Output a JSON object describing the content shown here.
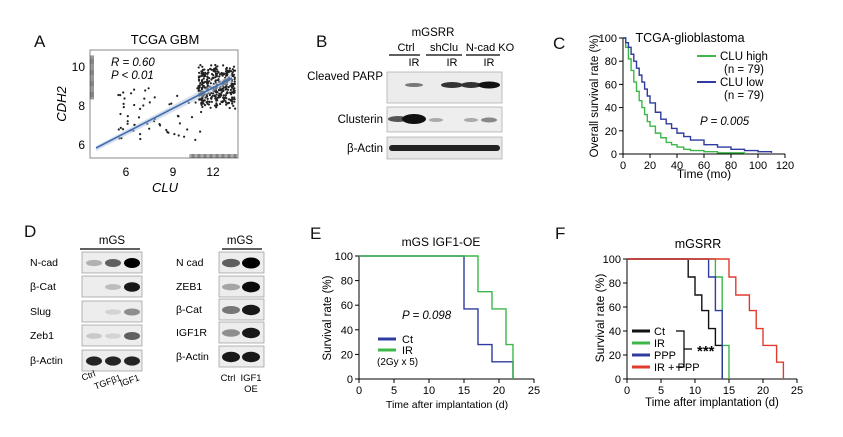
{
  "panel_letters": [
    "A",
    "B",
    "C",
    "D",
    "E",
    "F"
  ],
  "panelA": {
    "title": "TCGA GBM",
    "r_text": "R = 0.60",
    "p_text": "P < 0.01",
    "xlabel": "CLU",
    "ylabel": "CDH2",
    "xticks": [
      "6",
      "9",
      "12"
    ],
    "yticks": [
      "6",
      "8",
      "10"
    ]
  },
  "panelB": {
    "header": "mGSRR",
    "groups": [
      "Ctrl",
      "shClu",
      "N-cad KO"
    ],
    "ir_labels": [
      "IR",
      "IR",
      "IR"
    ],
    "rows": [
      "Cleaved PARP",
      "Clusterin",
      "β-Actin"
    ]
  },
  "panelC": {
    "title": "TCGA-glioblastoma",
    "legend": [
      {
        "label": "CLU high",
        "n": "(n = 79)",
        "color": "#3cb84a"
      },
      {
        "label": "CLU low",
        "n": "(n = 79)",
        "color": "#2f3b9e"
      }
    ],
    "p_text": "P = 0.005",
    "xlabel": "Time (mo)",
    "ylabel": "Overall survival rate (%)",
    "xticks": [
      "0",
      "20",
      "40",
      "60",
      "80",
      "100",
      "120"
    ],
    "yticks": [
      "0",
      "20",
      "40",
      "60",
      "80",
      "100"
    ]
  },
  "panelD": {
    "left_header": "mGS",
    "left_rows": [
      "N-cad",
      "β-Cat",
      "Slug",
      "Zeb1",
      "β-Actin"
    ],
    "left_lanes": [
      "Ctrl",
      "TGFβ1",
      "IGF1"
    ],
    "right_header": "mGS",
    "right_rows": [
      "N cad",
      "ZEB1",
      "β-Cat",
      "IGF1R",
      "β-Actin"
    ],
    "right_lanes": [
      "Ctrl",
      "IGF1 OE"
    ]
  },
  "panelE": {
    "title": "mGS IGF1-OE",
    "p_text": "P = 0.098",
    "legend": [
      {
        "label": "Ct",
        "color": "#2f3b9e"
      },
      {
        "label": "IR",
        "color": "#3cb84a"
      }
    ],
    "legend_note": "(2Gy x 5)",
    "xlabel": "Time after implantation (d)",
    "ylabel": "Survival rate (%)",
    "xticks": [
      "0",
      "5",
      "10",
      "15",
      "20",
      "25"
    ],
    "yticks": [
      "0",
      "20",
      "40",
      "60",
      "80",
      "100"
    ]
  },
  "panelF": {
    "title": "mGSRR",
    "legend": [
      {
        "label": "Ct",
        "color": "#111111"
      },
      {
        "label": "IR",
        "color": "#3cb84a"
      },
      {
        "label": "PPP",
        "color": "#2f3b9e"
      },
      {
        "label": "IR + PPP",
        "color": "#e23b2e"
      }
    ],
    "sig": "***",
    "xlabel": "Time after implantation (d)",
    "ylabel": "Survival rate (%)",
    "xticks": [
      "0",
      "5",
      "10",
      "15",
      "20",
      "25"
    ],
    "yticks": [
      "0",
      "20",
      "40",
      "60",
      "80",
      "100"
    ]
  },
  "chart_data": [
    {
      "type": "scatter",
      "panel": "A",
      "title": "TCGA GBM",
      "xlabel": "CLU",
      "ylabel": "CDH2",
      "xlim": [
        3.5,
        14
      ],
      "ylim": [
        4.8,
        10.8
      ],
      "annotations": [
        "R = 0.60",
        "P < 0.01"
      ],
      "regression": {
        "x": [
          4,
          13.5
        ],
        "y": [
          6.1,
          9.6
        ]
      }
    },
    {
      "type": "line",
      "panel": "C",
      "title": "TCGA-glioblastoma",
      "xlabel": "Time (mo)",
      "ylabel": "Overall survival rate (%)",
      "xlim": [
        0,
        120
      ],
      "ylim": [
        0,
        100
      ],
      "series": [
        {
          "name": "CLU high",
          "x": [
            0,
            2,
            4,
            6,
            8,
            10,
            12,
            14,
            16,
            18,
            20,
            24,
            28,
            32,
            36,
            40,
            45,
            50,
            60,
            70,
            80,
            90
          ],
          "y": [
            100,
            92,
            82,
            72,
            62,
            54,
            46,
            40,
            34,
            28,
            24,
            18,
            14,
            10,
            8,
            6,
            4,
            3,
            2,
            1,
            1,
            0
          ]
        },
        {
          "name": "CLU low",
          "x": [
            0,
            2,
            4,
            6,
            8,
            10,
            12,
            14,
            16,
            18,
            20,
            24,
            28,
            32,
            36,
            40,
            45,
            50,
            60,
            70,
            80,
            90,
            100,
            110
          ],
          "y": [
            100,
            96,
            92,
            86,
            80,
            74,
            68,
            62,
            56,
            50,
            44,
            36,
            30,
            26,
            22,
            18,
            15,
            12,
            8,
            6,
            4,
            3,
            2,
            1
          ]
        }
      ],
      "annotations": [
        "P = 0.005"
      ]
    },
    {
      "type": "line",
      "panel": "E",
      "title": "mGS IGF1-OE",
      "xlabel": "Time after implantation (d)",
      "ylabel": "Survival rate (%)",
      "xlim": [
        0,
        25
      ],
      "ylim": [
        0,
        100
      ],
      "series": [
        {
          "name": "Ct",
          "x": [
            0,
            15,
            15,
            17,
            17,
            19,
            19,
            22,
            22
          ],
          "y": [
            100,
            100,
            57,
            57,
            28,
            28,
            14,
            14,
            0
          ]
        },
        {
          "name": "IR",
          "x": [
            0,
            17,
            17,
            19,
            19,
            21,
            21,
            22,
            22
          ],
          "y": [
            100,
            100,
            71,
            71,
            57,
            57,
            28,
            28,
            0
          ]
        }
      ],
      "annotations": [
        "P = 0.098"
      ]
    },
    {
      "type": "line",
      "panel": "F",
      "title": "mGSRR",
      "xlabel": "Time after implantation (d)",
      "ylabel": "Survival rate (%)",
      "xlim": [
        0,
        25
      ],
      "ylim": [
        0,
        100
      ],
      "series": [
        {
          "name": "Ct",
          "x": [
            0,
            9,
            9,
            10,
            10,
            11,
            11,
            12,
            12,
            13,
            13,
            14,
            14
          ],
          "y": [
            100,
            100,
            85,
            85,
            70,
            70,
            57,
            57,
            42,
            42,
            28,
            28,
            0
          ]
        },
        {
          "name": "IR",
          "x": [
            0,
            13,
            13,
            14,
            14,
            15,
            15
          ],
          "y": [
            100,
            100,
            85,
            85,
            28,
            28,
            0
          ]
        },
        {
          "name": "PPP",
          "x": [
            0,
            12,
            12,
            13,
            13,
            14,
            14
          ],
          "y": [
            100,
            100,
            85,
            85,
            57,
            57,
            0
          ]
        },
        {
          "name": "IR + PPP",
          "x": [
            0,
            15,
            15,
            16,
            16,
            18,
            18,
            19,
            19,
            20,
            20,
            22,
            22,
            23,
            23
          ],
          "y": [
            100,
            100,
            85,
            85,
            70,
            70,
            57,
            57,
            42,
            42,
            28,
            28,
            14,
            14,
            0
          ]
        }
      ],
      "annotations": [
        "***"
      ]
    }
  ]
}
